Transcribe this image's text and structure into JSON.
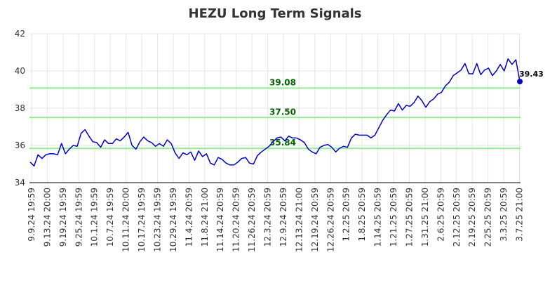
{
  "chart_data": {
    "type": "line",
    "title": "HEZU Long Term Signals",
    "ylim": [
      34,
      42
    ],
    "yticks": [
      "34",
      "36",
      "38",
      "40",
      "42"
    ],
    "xtick_labels": [
      "9.9.24 19:59",
      "9.13.24 20:00",
      "9.19.24 19:59",
      "9.25.24 19:59",
      "10.1.24 19:59",
      "10.7.24 19:59",
      "10.11.24 20:00",
      "10.17.24 19:59",
      "10.23.24 19:59",
      "10.29.24 19:59",
      "11.4.24 20:59",
      "11.8.24 21:00",
      "11.14.24 20:59",
      "11.20.24 20:59",
      "11.26.24 20:59",
      "12.3.24 20:59",
      "12.9.24 20:59",
      "12.13.24 21:00",
      "12.19.24 20:59",
      "12.26.24 20:59",
      "1.2.25 20:59",
      "1.8.25 20:59",
      "1.14.25 20:59",
      "1.21.25 20:59",
      "1.27.25 20:59",
      "1.31.25 21:00",
      "2.6.25 20:59",
      "2.12.25 20:59",
      "2.19.25 20:59",
      "2.25.25 20:59",
      "3.3.25 20:59",
      "3.7.25 21:00"
    ],
    "series": [
      {
        "color": "#0000cc",
        "values": [
          35.1,
          34.9,
          35.5,
          35.3,
          35.5,
          35.55,
          35.55,
          35.5,
          36.1,
          35.55,
          35.8,
          36.0,
          35.95,
          36.65,
          36.85,
          36.5,
          36.2,
          36.15,
          35.9,
          36.3,
          36.1,
          36.1,
          36.35,
          36.25,
          36.45,
          36.7,
          36.0,
          35.8,
          36.2,
          36.45,
          36.25,
          36.15,
          35.95,
          36.1,
          35.95,
          36.3,
          36.1,
          35.6,
          35.3,
          35.6,
          35.5,
          35.65,
          35.2,
          35.7,
          35.4,
          35.55,
          35.05,
          34.95,
          35.35,
          35.25,
          35.05,
          34.95,
          34.95,
          35.1,
          35.3,
          35.35,
          35.05,
          35.0,
          35.45,
          35.65,
          35.8,
          35.95,
          36.2,
          36.4,
          36.45,
          36.25,
          36.5,
          36.4,
          36.4,
          36.3,
          36.15,
          35.8,
          35.65,
          35.55,
          35.9,
          36.0,
          36.05,
          35.9,
          35.65,
          35.85,
          35.95,
          35.9,
          36.4,
          36.6,
          36.55,
          36.55,
          36.55,
          36.4,
          36.55,
          36.95,
          37.35,
          37.65,
          37.9,
          37.85,
          38.25,
          37.9,
          38.15,
          38.1,
          38.3,
          38.65,
          38.4,
          38.05,
          38.35,
          38.5,
          38.75,
          38.85,
          39.2,
          39.4,
          39.75,
          39.9,
          40.05,
          40.4,
          39.85,
          39.85,
          40.4,
          39.8,
          40.05,
          40.15,
          39.75,
          40.0,
          40.35,
          40.0,
          40.65,
          40.35,
          40.6,
          39.43
        ]
      }
    ],
    "hlines": [
      {
        "value": 39.08,
        "label": "39.08",
        "color": "#90ee90",
        "label_color": "#006400"
      },
      {
        "value": 37.5,
        "label": "37.50",
        "color": "#90ee90",
        "label_color": "#006400"
      },
      {
        "value": 35.84,
        "label": "35.84",
        "color": "#90ee90",
        "label_color": "#006400"
      }
    ],
    "last_value_label": "39.43",
    "grid": true
  }
}
